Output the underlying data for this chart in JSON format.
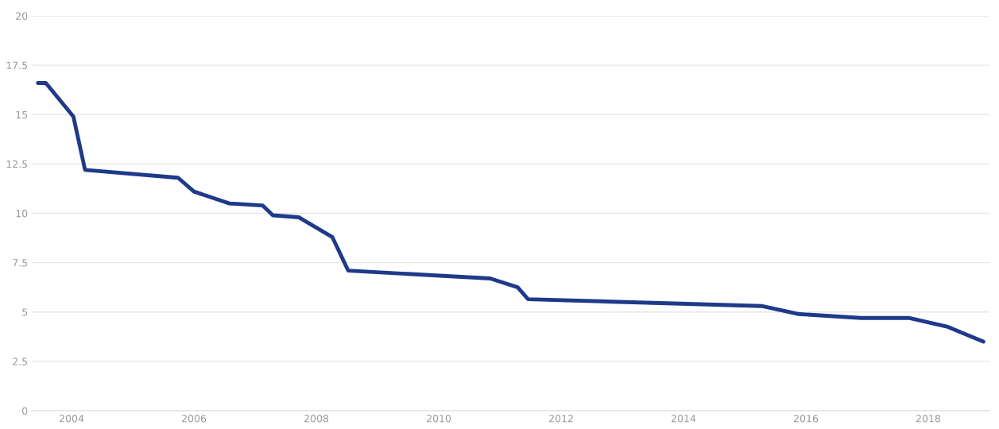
{
  "chart_data": {
    "type": "line",
    "x": [
      2003.45,
      2003.58,
      2004.03,
      2004.22,
      2005.74,
      2006.0,
      2006.58,
      2007.12,
      2007.29,
      2007.71,
      2008.26,
      2008.52,
      2010.84,
      2011.29,
      2011.46,
      2015.29,
      2015.87,
      2016.9,
      2017.68,
      2018.32,
      2018.9
    ],
    "series": [
      {
        "color": "#1f3a8a",
        "values": [
          16.6,
          16.6,
          14.9,
          12.2,
          11.8,
          11.1,
          10.5,
          10.4,
          9.9,
          9.8,
          8.8,
          7.1,
          6.7,
          6.25,
          5.65,
          5.3,
          4.9,
          4.7,
          4.7,
          4.25,
          3.5
        ]
      }
    ],
    "xlim": [
      2003.35,
      2019.0
    ],
    "xticks": [
      2004,
      2006,
      2008,
      2010,
      2012,
      2014,
      2016,
      2018
    ],
    "ylim": [
      0,
      20
    ],
    "yticks": [
      0,
      2.5,
      5,
      7.5,
      10,
      12.5,
      15,
      17.5,
      20
    ],
    "grid": "y",
    "legend": false,
    "marker": "none",
    "line_style": "solid"
  }
}
